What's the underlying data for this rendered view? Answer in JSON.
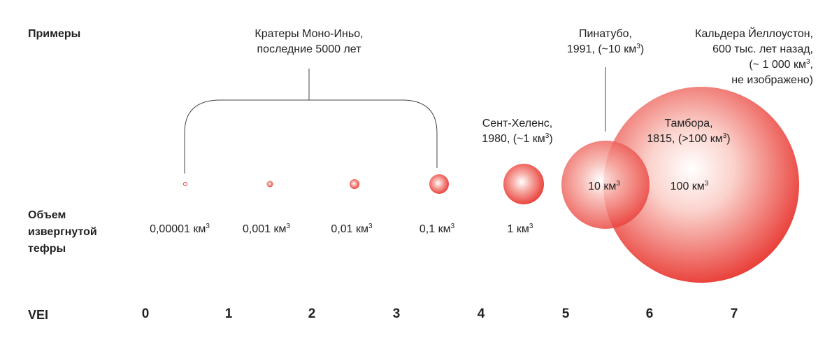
{
  "row_labels": {
    "examples": "Примеры",
    "volume_line1": "Объем",
    "volume_line2": "извергнутой",
    "volume_line3": "тефры",
    "vei": "VEI"
  },
  "examples": {
    "mono_inyo_line1": "Кратеры Моно-Иньо,",
    "mono_inyo_line2": "последние 5000 лет",
    "st_helens_line1": "Сент-Хеленс,",
    "st_helens_line2": "1980, (~1 км",
    "st_helens_close": ")",
    "pinatubo_line1": "Пинатубо,",
    "pinatubo_line2": "1991, (~10 км",
    "pinatubo_close": ")",
    "tambora_line1": "Тамбора,",
    "tambora_line2": "1815, (>100 км",
    "tambora_close": ")",
    "yellowstone_line1": "Кальдера Йеллоустон,",
    "yellowstone_line2": "600 тыс. лет назад,",
    "yellowstone_line3": "(~ 1 000 км",
    "yellowstone_line3_close": ",",
    "yellowstone_line4": "не изображено)"
  },
  "sup3": "3",
  "volumes": [
    "0,00001 км",
    "0,001 км",
    "0,01 км",
    "0,1 км",
    "1 км"
  ],
  "circle_labels": {
    "pinatubo": "10 км",
    "tambora": "100 км"
  },
  "vei_values": [
    "0",
    "1",
    "2",
    "3",
    "4",
    "5",
    "6",
    "7"
  ],
  "colors": {
    "circle_fill": "#e8342e",
    "circle_light": "#ffffff",
    "line": "#444444"
  }
}
